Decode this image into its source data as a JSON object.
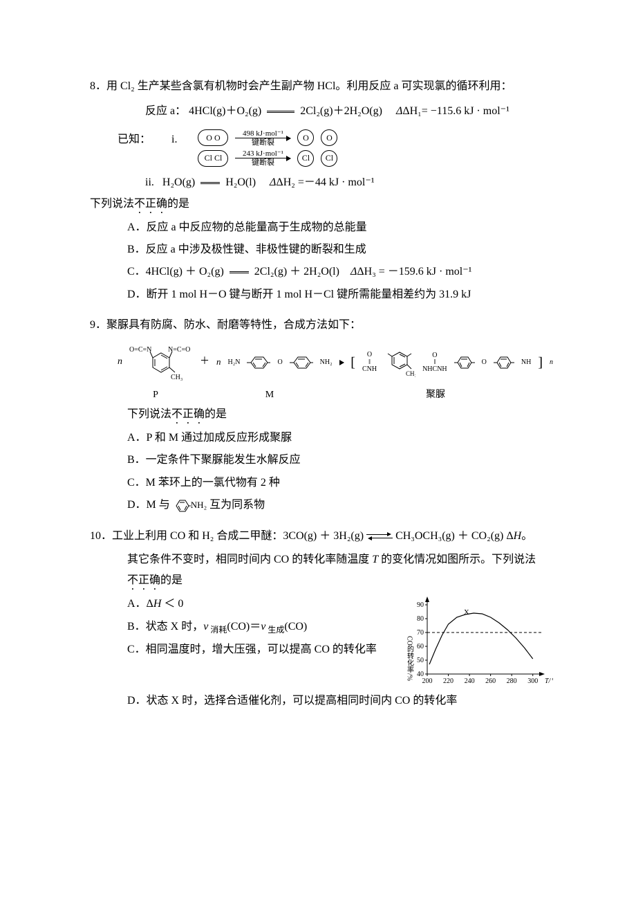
{
  "q8": {
    "number": "8．",
    "stem": "用 Cl₂ 生产某些含氯有机物时会产生副产物 HCl。利用反应 a 可实现氯的循环利用：",
    "reaction_label": "反应 a：",
    "reaction": "4HCl(g)＋O₂(g)",
    "reaction_rhs": "2Cl₂(g)＋2H₂O(g)",
    "dH1": "ΔH₁= −115.6 kJ · mol⁻¹",
    "known_label": "已知：",
    "i_label": "i.",
    "bond_O_pair": "O  O",
    "bond_O_single": "O",
    "bond_O_energy_top": "498 kJ·mol⁻¹",
    "bond_break_label": "键断裂",
    "bond_Cl_pair": "Cl Cl",
    "bond_Cl_single": "Cl",
    "bond_Cl_energy_top": "243 kJ·mol⁻¹",
    "ii_label": "ii.",
    "ii_eq_lhs": "H₂O(g)",
    "ii_eq_rhs": "H₂O(l)",
    "dH2": "ΔH₂ =－44 kJ · mol⁻¹",
    "prompt_pre": "下列说法",
    "prompt_em": "不正确",
    "prompt_post": "的是",
    "A": "A．反应 a 中反应物的总能量高于生成物的总能量",
    "B": "B．反应 a 中涉及极性键、非极性键的断裂和生成",
    "C_pre": "C．4HCl(g)  ＋  O₂(g)",
    "C_rhs": "2Cl₂(g)  ＋  2H₂O(l)",
    "C_dH": "ΔH₃ =  －159.6   kJ · mol⁻¹",
    "D": "D．断开 1 mol H－O 键与断开 1 mol H－Cl 键所需能量相差约为 31.9 kJ"
  },
  "q9": {
    "number": "9．",
    "stem": "聚脲具有防腐、防水、耐磨等特性，合成方法如下：",
    "n_label": "n",
    "P_top": "O=C=N",
    "P_top2": "N=C=O",
    "P_ch3": "CH₃",
    "P_label": "P",
    "plus": "＋",
    "M_n": "n",
    "M_h2n": "H₂N",
    "M_nh2": "NH₂",
    "M_O": "O",
    "M_label": "M",
    "prod_label": "聚脲",
    "prod_CNH": "CNH",
    "prod_NHCNH": "NHCNH",
    "prod_NH": "NH",
    "prod_O_top": "O",
    "prompt_pre": "下列说法",
    "prompt_em": "不正确",
    "prompt_post": "的是",
    "A": "A．P 和 M 通过加成反应形成聚脲",
    "B": "B．一定条件下聚脲能发生水解反应",
    "C": "C．M 苯环上的一氯代物有 2 种",
    "D_pre": "D．M 与",
    "D_nh2": "NH₂",
    "D_post": " 互为同系物"
  },
  "q10": {
    "number": "10．",
    "stem_pre": "工业上利用 CO 和 H₂ 合成二甲醚：3CO(g)  ＋  3H₂(g)",
    "stem_rhs": "CH₃OCH₃(g)  ＋  CO₂(g)    Δ",
    "stem_H": "H",
    "stem_end": "。",
    "line2_pre": "其它条件不变时，相同时间内 CO 的转化率随温度 ",
    "line2_T": "T",
    "line2_post": " 的变化情况如图所示。下列说法",
    "prompt_em": "不正确",
    "prompt_post": "的是",
    "A_pre": "A．Δ",
    "A_H": "H",
    "A_post": " ＜  0",
    "B_pre": "B．状态 X 时，",
    "B_v": "v",
    "B_sub1": " 消耗",
    "B_mid": "(CO)＝",
    "B_sub2": " 生成",
    "B_post": "(CO)",
    "C": "C．相同温度时，增大压强，可以提高 CO 的转化率",
    "D": "D．状态 X 时，选择合适催化剂，可以提高相同时间内 CO 的转化率",
    "chart": {
      "type": "line",
      "xlabel": "T/℃",
      "ylabel": "CO的转化率/%",
      "xlim": [
        200,
        310
      ],
      "ylim": [
        40,
        95
      ],
      "xticks": [
        200,
        220,
        240,
        260,
        280,
        300
      ],
      "yticks": [
        40,
        50,
        60,
        70,
        80,
        90
      ],
      "curve_color": "#000000",
      "background_color": "#ffffff",
      "dash_y": 70,
      "point_X_label": "X",
      "point_X": [
        232,
        81
      ],
      "curve_points": [
        [
          202,
          47
        ],
        [
          208,
          58
        ],
        [
          214,
          68
        ],
        [
          220,
          76
        ],
        [
          228,
          81
        ],
        [
          236,
          83
        ],
        [
          244,
          84
        ],
        [
          252,
          83.5
        ],
        [
          260,
          81
        ],
        [
          268,
          77
        ],
        [
          276,
          72
        ],
        [
          284,
          66
        ],
        [
          292,
          59
        ],
        [
          300,
          51
        ]
      ],
      "font_size_axis": 10,
      "line_width": 1.2
    }
  }
}
